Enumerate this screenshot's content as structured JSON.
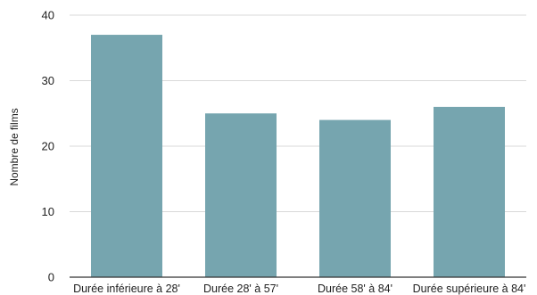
{
  "chart_data": {
    "type": "bar",
    "title": "",
    "xlabel": "",
    "ylabel": "Nombre de films",
    "categories": [
      "Durée inférieure à 28'",
      "Durée 28' à 57'",
      "Durée 58' à 84'",
      "Durée supérieure à 84'"
    ],
    "values": [
      37,
      25,
      24,
      26
    ],
    "ylim": [
      0,
      40
    ],
    "yticks": [
      "0",
      "10",
      "20",
      "30",
      "40"
    ],
    "grid": true,
    "legend": "none",
    "bar_color": "#76a5af",
    "grid_color": "#d9d9d9",
    "axis_color": "#333333"
  }
}
